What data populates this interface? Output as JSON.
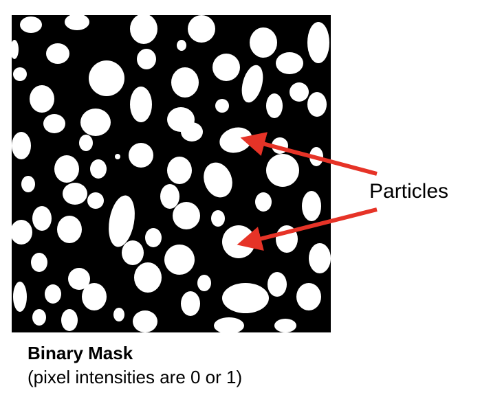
{
  "figure": {
    "annotation_label": "Particles",
    "caption_title": "Binary Mask",
    "caption_subtitle": "(pixel intensities are 0 or 1)",
    "colors": {
      "background": "#000000",
      "particle": "#ffffff",
      "arrow": "#e63327"
    }
  }
}
